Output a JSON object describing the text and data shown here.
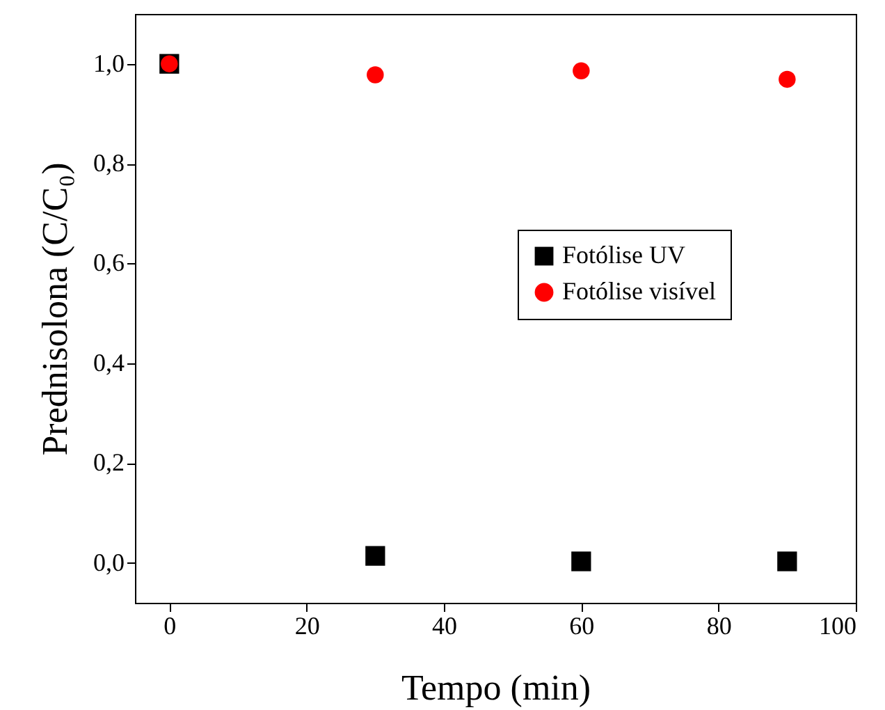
{
  "chart_data": {
    "type": "scatter",
    "xlabel": "Tempo (min)",
    "ylabel": "Prednisolona (C/C₀)",
    "x": [
      0,
      30,
      60,
      90
    ],
    "series": [
      {
        "name": "Fotólise UV",
        "color": "#000000",
        "marker": "square",
        "values": [
          1.0,
          0.014,
          0.003,
          0.003
        ]
      },
      {
        "name": "Fotólise visível",
        "color": "#ff0000",
        "marker": "circle",
        "values": [
          1.0,
          0.978,
          0.986,
          0.969
        ]
      }
    ],
    "xlim": [
      -5,
      100
    ],
    "xticks": [
      0,
      20,
      40,
      60,
      80,
      100
    ],
    "ylim": [
      -0.08,
      1.1
    ],
    "yticks": [
      {
        "value": 0,
        "label": "0,0"
      },
      {
        "value": 0.2,
        "label": "0,2"
      },
      {
        "value": 0.4,
        "label": "0,4"
      },
      {
        "value": 0.6,
        "label": "0,6"
      },
      {
        "value": 0.8,
        "label": "0,8"
      },
      {
        "value": 1.0,
        "label": "1,0"
      }
    ],
    "legend": "right",
    "grid": false
  }
}
